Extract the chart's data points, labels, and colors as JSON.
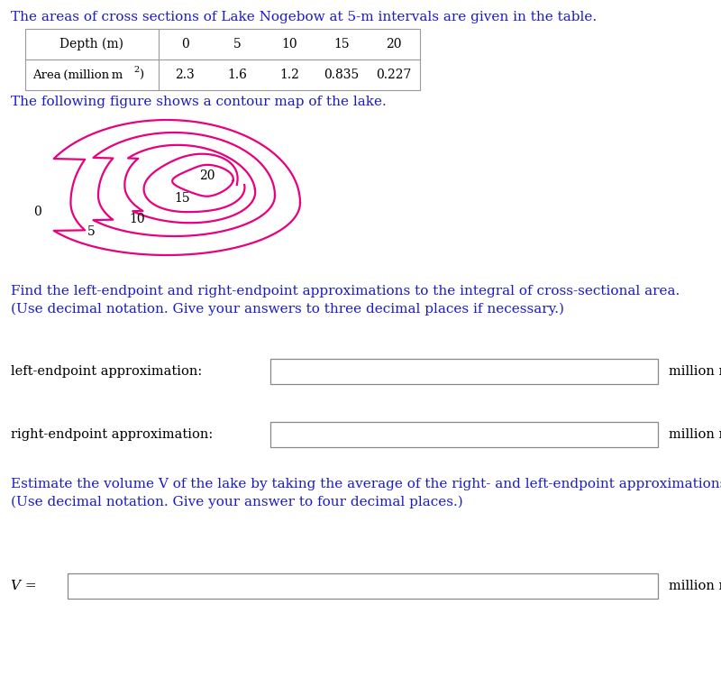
{
  "title_text": "The areas of cross sections of Lake Nogebow at 5-m intervals are given in the table.",
  "table_depth_label": "Depth (m)",
  "table_depths": [
    "0",
    "5",
    "10",
    "15",
    "20"
  ],
  "table_area_label": "Area (million m²)",
  "table_areas_values": [
    "2.3",
    "1.6",
    "1.2",
    "0.835",
    "0.227"
  ],
  "contour_label_text": "The following figure shows a contour map of the lake.",
  "contour_color": "#e8007f",
  "find_text1": "Find the left-endpoint and right-endpoint approximations to the integral of cross-sectional area.",
  "find_text2": "(Use decimal notation. Give your answers to three decimal places if necessary.)",
  "left_label": "left-endpoint approximation:",
  "right_label": "right-endpoint approximation:",
  "estimate_text1": "Estimate the volume V of the lake by taking the average of the right- and left-endpoint approximations.",
  "estimate_text2": "(Use decimal notation. Give your answer to four decimal places.)",
  "v_label": "V =",
  "text_color": "#1a1acd",
  "black": "#000000",
  "bg_color": "#ffffff"
}
